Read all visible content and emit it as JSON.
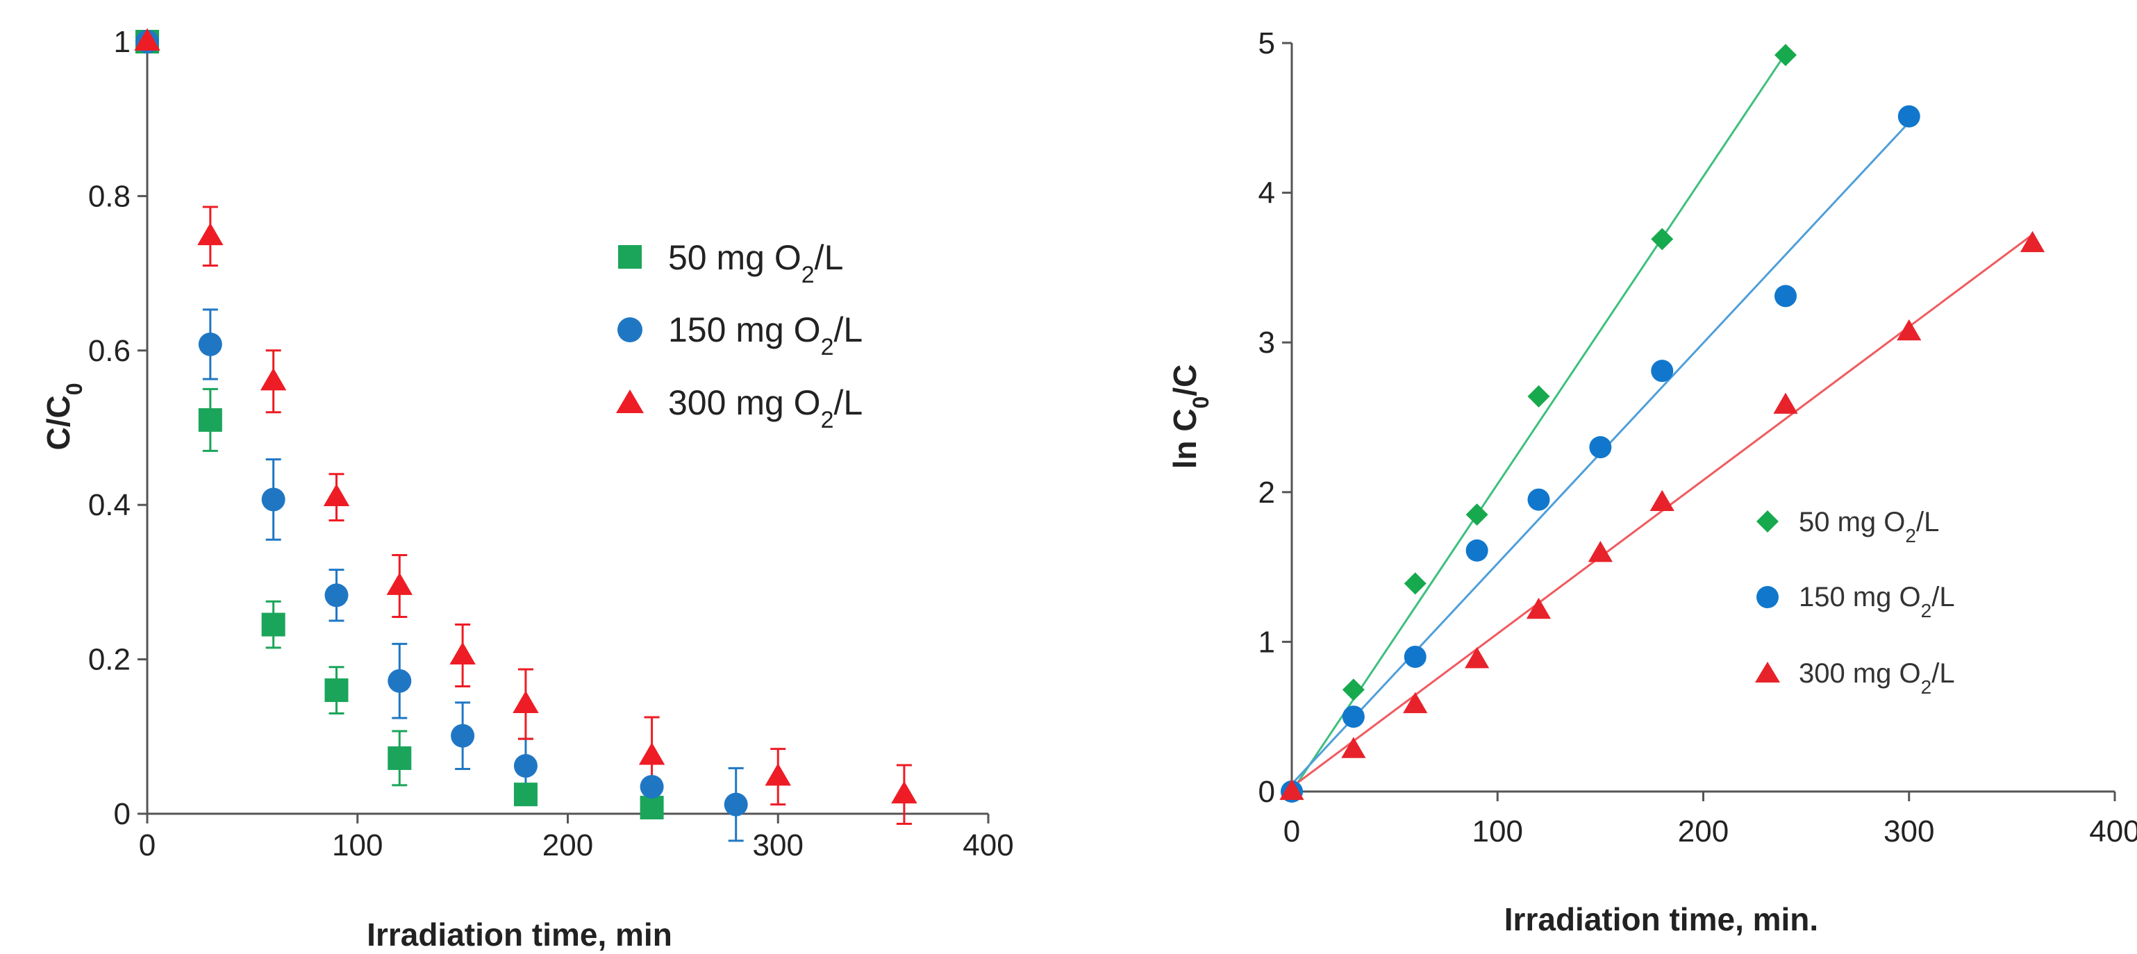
{
  "chart_data": [
    {
      "type": "scatter",
      "title": "",
      "xlabel": "Irradiation time, min",
      "ylabel_parts": [
        "C/C",
        "0"
      ],
      "xlim": [
        0,
        400
      ],
      "ylim": [
        0,
        1
      ],
      "x_ticks": [
        "0",
        "100",
        "200",
        "300",
        "400"
      ],
      "y_ticks": [
        "0",
        "0.2",
        "0.4",
        "0.6",
        "0.8",
        "1"
      ],
      "x_tick_values": [
        0,
        100,
        200,
        300,
        400
      ],
      "y_tick_values": [
        0,
        0.2,
        0.4,
        0.6,
        0.8,
        1
      ],
      "error_bars": "upper",
      "legend_position": "right",
      "series": [
        {
          "name": "50 mg O2/L",
          "legend_parts": [
            "50 mg O",
            "2",
            "/L"
          ],
          "marker": "square",
          "color": "#1aa55a",
          "x": [
            0,
            30,
            60,
            90,
            120,
            180,
            240
          ],
          "y": [
            1.0,
            0.51,
            0.245,
            0.16,
            0.072,
            0.025,
            0.008
          ],
          "err": [
            0.0,
            0.04,
            0.03,
            0.03,
            0.035,
            0.0,
            0.0
          ]
        },
        {
          "name": "150 mg O2/L",
          "legend_parts": [
            "150 mg O",
            "2",
            "/L"
          ],
          "marker": "circle",
          "color": "#1f77c4",
          "x": [
            0,
            30,
            60,
            90,
            120,
            150,
            180,
            240,
            280
          ],
          "y": [
            1.0,
            0.608,
            0.407,
            0.283,
            0.172,
            0.101,
            0.062,
            0.035,
            0.012
          ],
          "err": [
            0.0,
            0.045,
            0.052,
            0.033,
            0.048,
            0.043,
            0.035,
            0.0,
            0.047
          ]
        },
        {
          "name": "300 mg O2/L",
          "legend_parts": [
            "300 mg O",
            "2",
            "/L"
          ],
          "marker": "triangle",
          "color": "#ee1c24",
          "x": [
            0,
            30,
            60,
            90,
            120,
            150,
            180,
            240,
            300,
            360
          ],
          "y": [
            1.0,
            0.748,
            0.56,
            0.41,
            0.295,
            0.205,
            0.142,
            0.075,
            0.048,
            0.025
          ],
          "err": [
            0.0,
            0.038,
            0.04,
            0.03,
            0.04,
            0.04,
            0.045,
            0.05,
            0.036,
            0.038
          ]
        }
      ]
    },
    {
      "type": "scatter",
      "title": "",
      "xlabel": "Irradiation time, min.",
      "ylabel_parts": [
        "ln C",
        "0",
        "/C"
      ],
      "xlim": [
        0,
        400
      ],
      "ylim": [
        0,
        5
      ],
      "x_ticks": [
        "0",
        "100",
        "200",
        "300",
        "400"
      ],
      "y_ticks": [
        "0",
        "1",
        "2",
        "3",
        "4",
        "5"
      ],
      "x_tick_values": [
        0,
        100,
        200,
        300,
        400
      ],
      "y_tick_values": [
        0,
        1,
        2,
        3,
        4,
        5
      ],
      "legend_position": "lower-right",
      "series": [
        {
          "name": "50 mg O2/L",
          "legend_parts": [
            "50 mg O",
            "2",
            "/L"
          ],
          "marker": "diamond",
          "color": "#17a94e",
          "line_color": "#3fbf7f",
          "x": [
            0,
            30,
            60,
            90,
            120,
            180,
            240
          ],
          "y": [
            0,
            0.68,
            1.39,
            1.85,
            2.64,
            3.69,
            4.92
          ],
          "fit": {
            "x": [
              0,
              240
            ],
            "y": [
              0,
              4.93
            ]
          }
        },
        {
          "name": "150 mg O2/L",
          "legend_parts": [
            "150 mg O",
            "2",
            "/L"
          ],
          "marker": "circle",
          "color": "#1177cc",
          "line_color": "#4f9fd8",
          "x": [
            0,
            30,
            60,
            90,
            120,
            150,
            180,
            240,
            300
          ],
          "y": [
            0,
            0.5,
            0.9,
            1.61,
            1.95,
            2.3,
            2.81,
            3.31,
            4.51
          ],
          "fit": {
            "x": [
              0,
              300
            ],
            "y": [
              0.05,
              4.47
            ]
          }
        },
        {
          "name": "300 mg O2/L",
          "legend_parts": [
            "300 mg O",
            "2",
            "/L"
          ],
          "marker": "triangle",
          "color": "#e8222a",
          "line_color": "#f05a5f",
          "x": [
            0,
            30,
            60,
            90,
            120,
            150,
            180,
            240,
            300,
            360
          ],
          "y": [
            0,
            0.28,
            0.58,
            0.88,
            1.21,
            1.59,
            1.93,
            2.58,
            3.07,
            3.66
          ],
          "fit": {
            "x": [
              0,
              360
            ],
            "y": [
              0.03,
              3.72
            ]
          }
        }
      ]
    }
  ]
}
